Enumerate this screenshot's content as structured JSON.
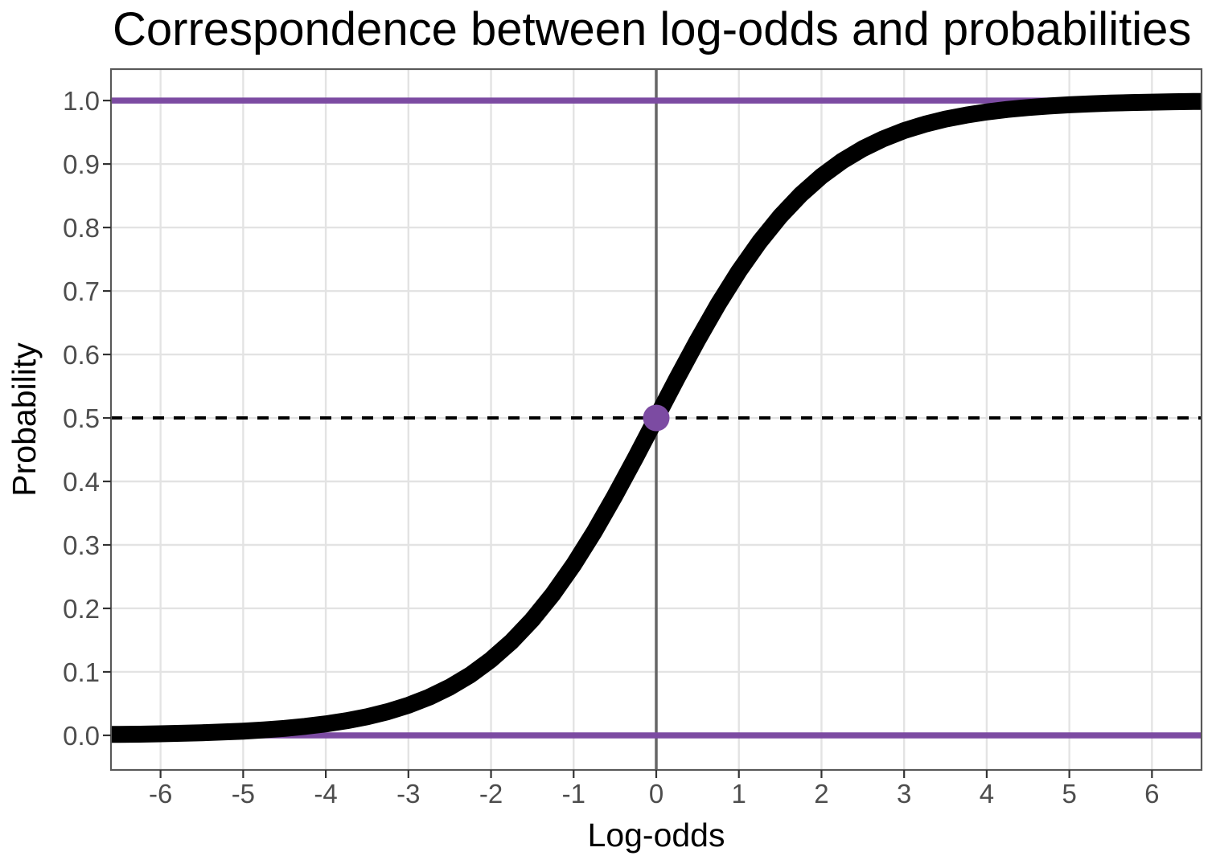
{
  "chart_data": {
    "type": "line",
    "title": "Correspondence between log-odds and probabilities",
    "xlabel": "Log-odds",
    "ylabel": "Probability",
    "xlim": [
      -6.6,
      6.6
    ],
    "ylim": [
      -0.0545,
      1.0495
    ],
    "x_tick_values": [
      -6,
      -5,
      -4,
      -3,
      -2,
      -1,
      0,
      1,
      2,
      3,
      4,
      5,
      6
    ],
    "x_tick_labels": [
      "-6",
      "-5",
      "-4",
      "-3",
      "-2",
      "-1",
      "0",
      "1",
      "2",
      "3",
      "4",
      "5",
      "6"
    ],
    "y_tick_values": [
      0.0,
      0.1,
      0.2,
      0.3,
      0.4,
      0.5,
      0.6,
      0.7,
      0.8,
      0.9,
      1.0
    ],
    "y_tick_labels": [
      "0.0",
      "0.1",
      "0.2",
      "0.3",
      "0.4",
      "0.5",
      "0.6",
      "0.7",
      "0.8",
      "0.9",
      "1.0"
    ],
    "grid": "major",
    "legend": "none",
    "colors": {
      "background": "#FFFFFF",
      "panel_background": "#FFFFFF",
      "grid": "#E3E3E3",
      "panel_border": "#595959",
      "axis_tick": "#333333",
      "tick_label": "#4D4D4D",
      "title_text": "#000000",
      "axis_title_text": "#000000",
      "curve": "#000000",
      "accent_purple": "#7C4BA2",
      "zero_vline": "#666666",
      "half_dashed": "#000000"
    },
    "reference_lines": [
      {
        "name": "log-odds-zero-vline",
        "orientation": "vertical",
        "value": 0,
        "color_key": "zero_vline",
        "width": 3.5,
        "dash": ""
      },
      {
        "name": "probability-one-line",
        "orientation": "horizontal",
        "value": 1.0,
        "color_key": "accent_purple",
        "width": 7.5,
        "dash": ""
      },
      {
        "name": "probability-zero-line",
        "orientation": "horizontal",
        "value": 0.0,
        "color_key": "accent_purple",
        "width": 7.5,
        "dash": ""
      },
      {
        "name": "probability-half-dashed-line",
        "orientation": "horizontal",
        "value": 0.5,
        "color_key": "half_dashed",
        "width": 4,
        "dash": "14 12"
      }
    ],
    "series": [
      {
        "name": "logistic-curve",
        "color_key": "curve",
        "width": 21,
        "points": [
          [
            -6.6,
            0.0014
          ],
          [
            -6.5,
            0.0015
          ],
          [
            -6.25,
            0.0019
          ],
          [
            -6.0,
            0.0025
          ],
          [
            -5.75,
            0.0032
          ],
          [
            -5.5,
            0.0041
          ],
          [
            -5.25,
            0.0052
          ],
          [
            -5.0,
            0.0067
          ],
          [
            -4.75,
            0.0086
          ],
          [
            -4.5,
            0.011
          ],
          [
            -4.25,
            0.0141
          ],
          [
            -4.0,
            0.018
          ],
          [
            -3.75,
            0.023
          ],
          [
            -3.5,
            0.0293
          ],
          [
            -3.25,
            0.0373
          ],
          [
            -3.0,
            0.0474
          ],
          [
            -2.75,
            0.0601
          ],
          [
            -2.5,
            0.0759
          ],
          [
            -2.25,
            0.0953
          ],
          [
            -2.0,
            0.1192
          ],
          [
            -1.75,
            0.148
          ],
          [
            -1.5,
            0.1824
          ],
          [
            -1.25,
            0.2227
          ],
          [
            -1.0,
            0.2689
          ],
          [
            -0.75,
            0.3208
          ],
          [
            -0.5,
            0.3775
          ],
          [
            -0.25,
            0.4378
          ],
          [
            0.0,
            0.5
          ],
          [
            0.25,
            0.5622
          ],
          [
            0.5,
            0.6225
          ],
          [
            0.75,
            0.6792
          ],
          [
            1.0,
            0.7311
          ],
          [
            1.25,
            0.7773
          ],
          [
            1.5,
            0.8176
          ],
          [
            1.75,
            0.852
          ],
          [
            2.0,
            0.8808
          ],
          [
            2.25,
            0.9047
          ],
          [
            2.5,
            0.9241
          ],
          [
            2.75,
            0.9399
          ],
          [
            3.0,
            0.9526
          ],
          [
            3.25,
            0.9627
          ],
          [
            3.5,
            0.9707
          ],
          [
            3.75,
            0.977
          ],
          [
            4.0,
            0.982
          ],
          [
            4.25,
            0.9859
          ],
          [
            4.5,
            0.989
          ],
          [
            4.75,
            0.9914
          ],
          [
            5.0,
            0.9933
          ],
          [
            5.25,
            0.9948
          ],
          [
            5.5,
            0.9959
          ],
          [
            5.75,
            0.9968
          ],
          [
            6.0,
            0.9975
          ],
          [
            6.25,
            0.9981
          ],
          [
            6.5,
            0.9985
          ],
          [
            6.6,
            0.9986
          ]
        ]
      }
    ],
    "markers": [
      {
        "name": "half-probability-point",
        "x": 0,
        "y": 0.5,
        "r": 16.5,
        "color_key": "accent_purple"
      }
    ]
  }
}
